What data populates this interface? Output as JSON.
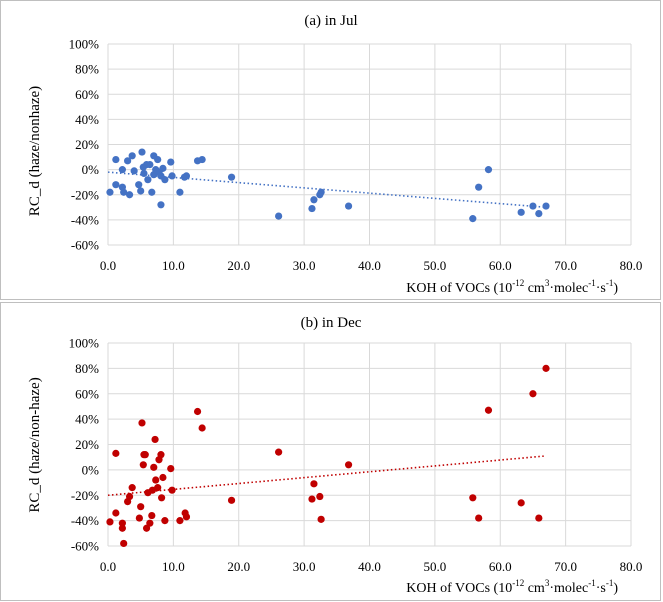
{
  "chart_data": [
    {
      "type": "scatter",
      "title": "(a) in Jul",
      "ylabel": "RC_d (haze/nonhaze)",
      "xlabel": "KOH of VOCs (10-12 cm3·molec-1·s-1)",
      "xlabel_parts": {
        "prefix": "KOH of VOCs (10",
        "e1": "-12",
        "mid1": " cm",
        "e2": "3",
        "mid2": "·molec",
        "e3": "-1",
        "mid3": "·s",
        "e4": "-1",
        "suffix": ")"
      },
      "xlim": [
        0,
        80
      ],
      "ylim": [
        -60,
        100
      ],
      "xticks": [
        "0.0",
        "10.0",
        "20.0",
        "30.0",
        "40.0",
        "50.0",
        "60.0",
        "70.0",
        "80.0"
      ],
      "yticks": [
        "100%",
        "80%",
        "60%",
        "40%",
        "20%",
        "0%",
        "-20%",
        "-40%",
        "-60%"
      ],
      "marker_color": "#4472C4",
      "trend_color": "#4472C4",
      "trendline": {
        "x": [
          0,
          67
        ],
        "y": [
          -2,
          -30
        ]
      },
      "points": [
        [
          0.3,
          -18
        ],
        [
          1.2,
          8
        ],
        [
          1.2,
          -12
        ],
        [
          2.2,
          0
        ],
        [
          2.2,
          -14
        ],
        [
          2.4,
          -18
        ],
        [
          3.0,
          7
        ],
        [
          3.3,
          -20
        ],
        [
          3.7,
          11
        ],
        [
          4.0,
          -1
        ],
        [
          4.7,
          -12
        ],
        [
          5.0,
          -17
        ],
        [
          5.2,
          14
        ],
        [
          5.4,
          2
        ],
        [
          5.5,
          -3
        ],
        [
          5.9,
          4
        ],
        [
          6.1,
          -8
        ],
        [
          6.4,
          4
        ],
        [
          6.7,
          -18
        ],
        [
          7.0,
          -4
        ],
        [
          7.0,
          11
        ],
        [
          7.3,
          0
        ],
        [
          7.6,
          8
        ],
        [
          7.8,
          -2
        ],
        [
          8.1,
          -28
        ],
        [
          8.1,
          -5
        ],
        [
          8.4,
          1
        ],
        [
          8.7,
          -8
        ],
        [
          9.6,
          6
        ],
        [
          9.8,
          -5
        ],
        [
          11.0,
          -18
        ],
        [
          11.7,
          -6
        ],
        [
          12.0,
          -5
        ],
        [
          13.7,
          7
        ],
        [
          14.4,
          8
        ],
        [
          18.9,
          -6
        ],
        [
          26.1,
          -37
        ],
        [
          31.2,
          -31
        ],
        [
          31.5,
          -24
        ],
        [
          32.4,
          -20
        ],
        [
          32.6,
          -18
        ],
        [
          36.8,
          -29
        ],
        [
          55.8,
          -39
        ],
        [
          56.7,
          -14
        ],
        [
          58.2,
          0
        ],
        [
          63.2,
          -34
        ],
        [
          65.0,
          -29
        ],
        [
          65.9,
          -35
        ],
        [
          67.0,
          -29
        ]
      ]
    },
    {
      "type": "scatter",
      "title": "(b) in Dec",
      "ylabel": "RC_d (haze/non-haze)",
      "xlabel": "KOH of VOCs (10-12 cm3·molec-1·s-1)",
      "xlabel_parts": {
        "prefix": "KOH of VOCs (10",
        "e1": "-12",
        "mid1": " cm",
        "e2": "3",
        "mid2": "·molec",
        "e3": "-1",
        "mid3": "·s",
        "e4": "-1",
        "suffix": ")"
      },
      "xlim": [
        0,
        80
      ],
      "ylim": [
        -60,
        100
      ],
      "xticks": [
        "0.0",
        "10.0",
        "20.0",
        "30.0",
        "40.0",
        "50.0",
        "60.0",
        "70.0",
        "80.0"
      ],
      "yticks": [
        "100%",
        "80%",
        "60%",
        "40%",
        "20%",
        "0%",
        "-20%",
        "-40%",
        "-60%"
      ],
      "marker_color": "#C00000",
      "trend_color": "#C00000",
      "trendline": {
        "x": [
          0,
          67
        ],
        "y": [
          -20,
          11
        ]
      },
      "points": [
        [
          0.3,
          -41
        ],
        [
          1.2,
          13
        ],
        [
          1.2,
          -34
        ],
        [
          2.2,
          -46
        ],
        [
          2.2,
          -42
        ],
        [
          2.4,
          -58
        ],
        [
          3.0,
          -25
        ],
        [
          3.3,
          -21
        ],
        [
          3.7,
          -14
        ],
        [
          4.8,
          -38
        ],
        [
          5.0,
          -29
        ],
        [
          5.2,
          37
        ],
        [
          5.4,
          4
        ],
        [
          5.5,
          12
        ],
        [
          5.7,
          12
        ],
        [
          5.9,
          -46
        ],
        [
          6.1,
          -18
        ],
        [
          6.4,
          -42
        ],
        [
          6.7,
          -36
        ],
        [
          6.8,
          -16
        ],
        [
          7.0,
          2
        ],
        [
          7.2,
          24
        ],
        [
          7.3,
          -8
        ],
        [
          7.6,
          -14
        ],
        [
          7.8,
          8
        ],
        [
          8.1,
          12
        ],
        [
          8.2,
          -22
        ],
        [
          8.4,
          -6
        ],
        [
          8.7,
          -40
        ],
        [
          9.6,
          1
        ],
        [
          9.8,
          -16
        ],
        [
          11.0,
          -40
        ],
        [
          11.8,
          -34
        ],
        [
          12.0,
          -37
        ],
        [
          13.7,
          46
        ],
        [
          14.4,
          33
        ],
        [
          18.9,
          -24
        ],
        [
          26.1,
          14
        ],
        [
          31.2,
          -23
        ],
        [
          31.5,
          -11
        ],
        [
          32.4,
          -21
        ],
        [
          32.6,
          -39
        ],
        [
          36.8,
          4
        ],
        [
          55.8,
          -22
        ],
        [
          56.7,
          -38
        ],
        [
          58.2,
          47
        ],
        [
          63.2,
          -26
        ],
        [
          65.0,
          60
        ],
        [
          65.9,
          -38
        ],
        [
          67.0,
          80
        ]
      ]
    }
  ]
}
